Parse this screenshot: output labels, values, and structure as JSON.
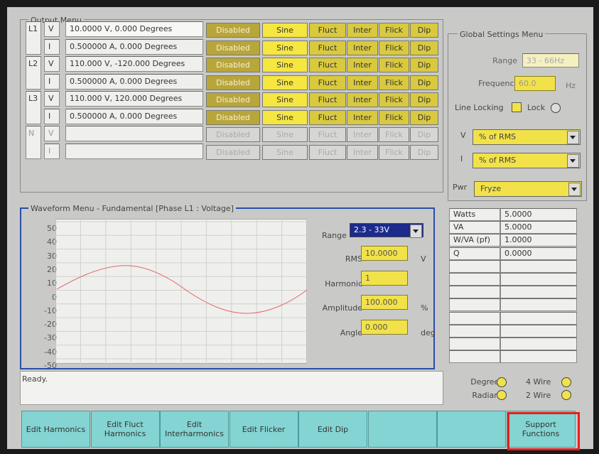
{
  "output_menu": {
    "title": "Output Menu",
    "rows": [
      {
        "phase": "L1",
        "type": "V",
        "value": "10.0000 V,   0.000 Degrees",
        "buttons": [
          "Disabled",
          "Sine",
          "Fluct",
          "Inter",
          "Flick",
          "Dip"
        ]
      },
      {
        "type": "I",
        "value": "0.500000 A,  0.000 Degrees",
        "buttons": [
          "Disabled",
          "Sine",
          "Fluct",
          "Inter",
          "Flick",
          "Dip"
        ]
      },
      {
        "phase": "L2",
        "type": "V",
        "value": "110.000 V,   -120.000 Degrees",
        "buttons": [
          "Disabled",
          "Sine",
          "Fluct",
          "Inter",
          "Flick",
          "Dip"
        ]
      },
      {
        "type": "I",
        "value": "0.500000 A,  0.000 Degrees",
        "buttons": [
          "Disabled",
          "Sine",
          "Fluct",
          "Inter",
          "Flick",
          "Dip"
        ]
      },
      {
        "phase": "L3",
        "type": "V",
        "value": "110.000 V,   120.000 Degrees",
        "buttons": [
          "Disabled",
          "Sine",
          "Fluct",
          "Inter",
          "Flick",
          "Dip"
        ]
      },
      {
        "type": "I",
        "value": "0.500000 A,  0.000 Degrees",
        "buttons": [
          "Disabled",
          "Sine",
          "Fluct",
          "Inter",
          "Flick",
          "Dip"
        ]
      },
      {
        "phase": "N",
        "type": "V",
        "buttons": [
          "Disabled",
          "Sine",
          "Fluct",
          "Inter",
          "Flick",
          "Dip"
        ]
      },
      {
        "type": "I",
        "buttons": [
          "Disabled",
          "Sine",
          "Fluct",
          "Inter",
          "Flick",
          "Dip"
        ]
      }
    ]
  },
  "global_settings": {
    "title": "Global Settings Menu",
    "range_label": "Range",
    "range": "33 - 66Hz",
    "frequency_label": "Frequency",
    "frequency": "60.0",
    "frequency_unit": "Hz",
    "line_locking": "Line Locking",
    "lock": "Lock",
    "v_label": "V",
    "v_mode": "% of RMS",
    "i_label": "I",
    "i_mode": "% of RMS",
    "pwr_label": "Pwr",
    "pwr_mode": "Fryze"
  },
  "measurements": [
    {
      "label": "Watts",
      "value": "5.0000"
    },
    {
      "label": "VA",
      "value": "5.0000"
    },
    {
      "label": "W/VA (pf)",
      "value": "1.0000"
    },
    {
      "label": "Q",
      "value": "0.0000"
    }
  ],
  "waveform_menu": {
    "title": "Waveform Menu - Fundamental [Phase L1 : Voltage]",
    "ylim": [
      -50,
      50
    ],
    "yticks": [
      50,
      40,
      30,
      20,
      10,
      0,
      -10,
      -20,
      -30,
      -40,
      -50
    ],
    "range_label": "Range",
    "range": "2.3 - 33V",
    "fields": [
      {
        "label": "RMS",
        "value": "10.0000",
        "unit": "V"
      },
      {
        "label": "Harmonic",
        "value": "1"
      },
      {
        "label": "Amplitude",
        "value": "100.000",
        "unit": "%"
      },
      {
        "label": "Angle",
        "value": "0.000",
        "unit": "deg"
      }
    ]
  },
  "status": "Ready.",
  "options": {
    "degrees": "Degrees",
    "radians": "Radians",
    "wire4": "4 Wire",
    "wire2": "2 Wire"
  },
  "toolbar": [
    "Edit Harmonics",
    "Edit Fluct Harmonics",
    "Edit Interharmonics",
    "Edit Flicker",
    "Edit Dip"
  ],
  "toolbar_right": [
    "Support Functions"
  ]
}
